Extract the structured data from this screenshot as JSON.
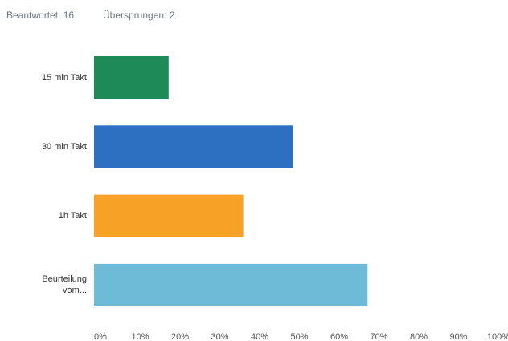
{
  "header": {
    "answered": "Beantwortet: 16",
    "skipped": "Übersprungen: 2"
  },
  "chart_data": {
    "type": "hbar",
    "categories": [
      "15 min Takt",
      "30 min Takt",
      "1h Takt",
      "Beurteilung vom..."
    ],
    "values": [
      18.75,
      50,
      37.5,
      68.75
    ],
    "colors": [
      "#1e8a58",
      "#2d6fc0",
      "#f7a126",
      "#6dbbd6"
    ],
    "xlim": [
      0,
      100
    ],
    "xticks": [
      {
        "value": 0,
        "label": "0%"
      },
      {
        "value": 10,
        "label": "10%"
      },
      {
        "value": 20,
        "label": "20%"
      },
      {
        "value": 30,
        "label": "30%"
      },
      {
        "value": 40,
        "label": "40%"
      },
      {
        "value": 50,
        "label": "50%"
      },
      {
        "value": 60,
        "label": "60%"
      },
      {
        "value": 70,
        "label": "70%"
      },
      {
        "value": 80,
        "label": "80%"
      },
      {
        "value": 90,
        "label": "90%"
      },
      {
        "value": 100,
        "label": "100%"
      }
    ],
    "grid": false
  }
}
